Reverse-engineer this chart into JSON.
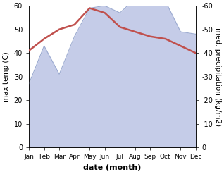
{
  "months": [
    "Jan",
    "Feb",
    "Mar",
    "Apr",
    "May",
    "Jun",
    "Jul",
    "Aug",
    "Sep",
    "Oct",
    "Nov",
    "Dec"
  ],
  "month_positions": [
    0,
    1,
    2,
    3,
    4,
    5,
    6,
    7,
    8,
    9,
    10,
    11
  ],
  "max_temp": [
    41,
    46,
    50,
    52,
    59,
    57,
    51,
    49,
    47,
    46,
    43,
    40
  ],
  "precipitation": [
    27,
    43,
    31,
    47,
    59,
    60,
    57,
    63,
    62,
    62,
    49,
    48
  ],
  "temp_color": "#c0504d",
  "precip_fill_color": "#c5cce8",
  "precip_line_color": "#9baad0",
  "left_ylabel": "max temp (C)",
  "right_ylabel": "med. precipitation (kg/m2)",
  "xlabel": "date (month)",
  "ylim_left": [
    0,
    60
  ],
  "ylim_right": [
    0,
    60
  ],
  "yticks": [
    0,
    10,
    20,
    30,
    40,
    50,
    60
  ],
  "right_ytick_labels": [
    "0",
    "10",
    "20",
    "30",
    "40",
    "50",
    "60"
  ],
  "background_color": "#ffffff",
  "fig_width": 3.18,
  "fig_height": 2.47,
  "dpi": 100
}
